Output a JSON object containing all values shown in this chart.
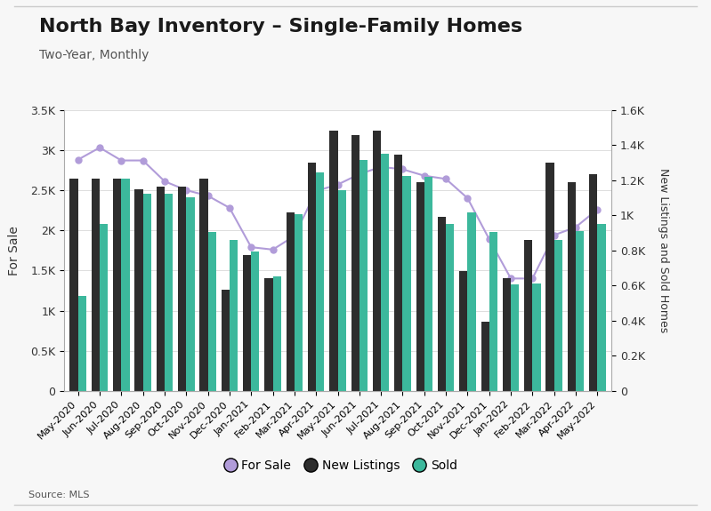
{
  "title": "North Bay Inventory – Single-Family Homes",
  "subtitle": "Two-Year, Monthly",
  "source": "Source: MLS",
  "categories": [
    "May-2020",
    "Jun-2020",
    "Jul-2020",
    "Aug-2020",
    "Sep-2020",
    "Oct-2020",
    "Nov-2020",
    "Dec-2020",
    "Jan-2021",
    "Feb-2021",
    "Mar-2021",
    "Apr-2021",
    "May-2021",
    "Jun-2021",
    "Jul-2021",
    "Aug-2021",
    "Sep-2021",
    "Oct-2021",
    "Nov-2021",
    "Dec-2021",
    "Jan-2022",
    "Feb-2022",
    "Mar-2022",
    "Apr-2022",
    "May-2022"
  ],
  "new_listings": [
    1210,
    1210,
    1210,
    1150,
    1165,
    1165,
    1210,
    575,
    775,
    640,
    1015,
    1300,
    1480,
    1455,
    1480,
    1345,
    1190,
    990,
    680,
    395,
    640,
    860,
    1300,
    1190,
    1235
  ],
  "sold": [
    540,
    950,
    1210,
    1125,
    1125,
    1100,
    905,
    860,
    795,
    650,
    1005,
    1245,
    1145,
    1315,
    1350,
    1225,
    1220,
    950,
    1015,
    905,
    605,
    610,
    860,
    910,
    950
  ],
  "for_sale": [
    2880,
    3030,
    2870,
    2870,
    2610,
    2500,
    2430,
    2280,
    1790,
    1760,
    1930,
    2490,
    2570,
    2700,
    2790,
    2760,
    2680,
    2640,
    2400,
    1890,
    1400,
    1400,
    1940,
    2040,
    2260
  ],
  "bar_color_new": "#2d2d2d",
  "bar_color_sold": "#3cb89c",
  "line_color": "#b19cd9",
  "left_ylim": [
    0,
    3500
  ],
  "right_ylim": [
    0,
    1600
  ],
  "left_yticks": [
    0,
    500,
    1000,
    1500,
    2000,
    2500,
    3000,
    3500
  ],
  "left_yticklabels": [
    "0",
    "0.5K",
    "1K",
    "1.5K",
    "2K",
    "2.5K",
    "3K",
    "3.5K"
  ],
  "right_yticks": [
    0,
    200,
    400,
    600,
    800,
    1000,
    1200,
    1400,
    1600
  ],
  "right_yticklabels": [
    "0",
    "0.2K",
    "0.4K",
    "0.6K",
    "0.8K",
    "1K",
    "1.2K",
    "1.4K",
    "1.6K"
  ],
  "ylabel_left": "For Sale",
  "ylabel_right": "New Listings and Sold Homes",
  "bg_color": "#f7f7f7",
  "plot_bg_color": "#ffffff",
  "title_fontsize": 16,
  "subtitle_fontsize": 10
}
